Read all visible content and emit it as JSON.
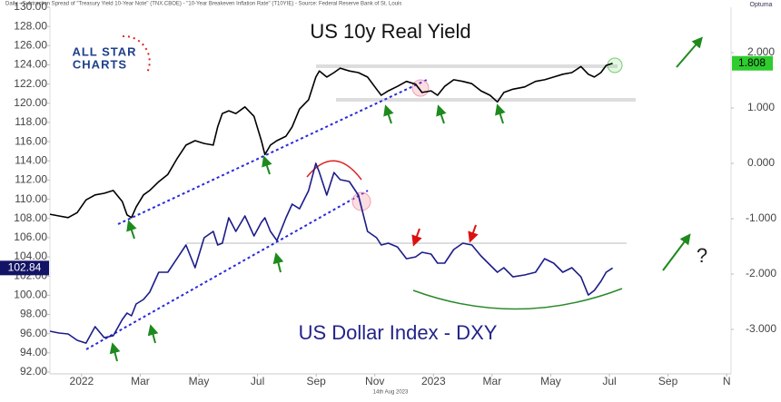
{
  "chart_data": {
    "type": "line",
    "subtitle": "Daily - Subtraction Spread of \"Treasury Yield 10-Year Note\" (TNX.CBOE) - \"10-Year Breakeven Inflation Rate\" (T10YIE) - Source: Federal Reserve Bank of St. Louis",
    "annotations": [
      "US 10y Real Yield",
      "US Dollar Index - DXY",
      "?"
    ],
    "logo": [
      "ALL STAR",
      "CHARTS"
    ],
    "brand": "Optuma",
    "footer": "14th Aug 2023",
    "x": [
      -1.08,
      -0.77,
      -0.46,
      -0.15,
      0.15,
      0.46,
      0.77,
      1.08,
      1.39,
      1.55,
      1.7,
      1.86,
      2.11,
      2.32,
      2.63,
      2.94,
      3.25,
      3.56,
      3.87,
      4.18,
      4.49,
      4.64,
      4.8,
      5.02,
      5.26,
      5.57,
      5.88,
      6.13,
      6.25,
      6.44,
      6.66,
      6.97,
      7.18,
      7.43,
      7.74,
      7.99,
      8.11,
      8.36,
      8.61,
      8.82,
      9.13,
      9.44,
      9.75,
      10.06,
      10.22,
      10.46,
      10.77,
      11.08,
      11.39,
      11.61,
      11.92,
      12.14,
      12.38,
      12.69,
      13.0,
      13.31,
      13.62,
      13.93,
      14.18,
      14.4,
      14.71,
      15.11,
      15.48,
      15.79,
      16.1,
      16.41,
      16.72,
      17.03,
      17.28,
      17.49,
      17.71,
      17.89,
      18.11
    ],
    "xlim": [
      -1.08,
      22.15
    ],
    "xticks": [
      {
        "value": 0,
        "label": "2022"
      },
      {
        "value": 2,
        "label": "Mar"
      },
      {
        "value": 4,
        "label": "May"
      },
      {
        "value": 6,
        "label": "Jul"
      },
      {
        "value": 8,
        "label": "Sep"
      },
      {
        "value": 10,
        "label": "Nov"
      },
      {
        "value": 12,
        "label": "2023"
      },
      {
        "value": 14,
        "label": "Mar"
      },
      {
        "value": 16,
        "label": "May"
      },
      {
        "value": 18,
        "label": "Jul"
      },
      {
        "value": 20,
        "label": "Sep"
      },
      {
        "value": 22,
        "label": "N"
      }
    ],
    "ylim": [
      92,
      130
    ],
    "yticks": [
      {
        "value": 92,
        "label": "92.00"
      },
      {
        "value": 94,
        "label": "94.00"
      },
      {
        "value": 96,
        "label": "96.00"
      },
      {
        "value": 98,
        "label": "98.00"
      },
      {
        "value": 100,
        "label": "100.00"
      },
      {
        "value": 102,
        "label": "102.00"
      },
      {
        "value": 104,
        "label": "104.00"
      },
      {
        "value": 106,
        "label": "106.00"
      },
      {
        "value": 108,
        "label": "108.00"
      },
      {
        "value": 110,
        "label": "110.00"
      },
      {
        "value": 112,
        "label": "112.00"
      },
      {
        "value": 114,
        "label": "114.00"
      },
      {
        "value": 116,
        "label": "116.00"
      },
      {
        "value": 118,
        "label": "118.00"
      },
      {
        "value": 120,
        "label": "120.00"
      },
      {
        "value": 122,
        "label": "122.00"
      },
      {
        "value": 124,
        "label": "124.00"
      },
      {
        "value": 126,
        "label": "126.00"
      },
      {
        "value": 128,
        "label": "128.00"
      },
      {
        "value": 130,
        "label": "130.00"
      }
    ],
    "y2lim": [
      -3.77,
      2.82
    ],
    "y2ticks": [
      {
        "value": 2,
        "label": "2.000"
      },
      {
        "value": 1,
        "label": "1.000"
      },
      {
        "value": 0,
        "label": "0.000"
      },
      {
        "value": -1,
        "label": "-1.000"
      },
      {
        "value": -2,
        "label": "-2.000"
      },
      {
        "value": -3,
        "label": "-3.000"
      }
    ],
    "series": [
      {
        "name": "US Dollar Index - DXY",
        "color": "#1c1c8a",
        "axis": "y",
        "values": [
          96.25,
          96.06,
          95.97,
          95.31,
          95.02,
          96.73,
          95.59,
          95.78,
          97.48,
          98.14,
          97.86,
          99.09,
          99.56,
          100.32,
          102.4,
          102.4,
          103.81,
          105.23,
          102.87,
          105.99,
          106.65,
          105.23,
          105.42,
          108.07,
          106.65,
          108.26,
          106.18,
          107.6,
          108.07,
          106.65,
          105.7,
          108.07,
          109.49,
          109.01,
          110.9,
          113.74,
          112.79,
          110.43,
          112.79,
          112.04,
          111.85,
          110.43,
          106.65,
          105.99,
          105.23,
          105.42,
          105.04,
          103.81,
          104.0,
          104.48,
          104.29,
          103.34,
          103.34,
          104.76,
          105.42,
          105.23,
          104.1,
          103.15,
          102.4,
          102.87,
          101.92,
          102.11,
          102.4,
          103.81,
          103.34,
          102.4,
          102.87,
          101.92,
          100.03,
          100.51,
          101.45,
          102.4,
          102.84
        ]
      },
      {
        "name": "US 10y Real Yield",
        "color": "#000000",
        "axis": "y2",
        "values": [
          -0.92,
          -0.95,
          -0.98,
          -0.89,
          -0.66,
          -0.57,
          -0.54,
          -0.49,
          -0.69,
          -0.93,
          -0.98,
          -0.79,
          -0.57,
          -0.49,
          -0.33,
          -0.2,
          0.08,
          0.33,
          0.41,
          0.36,
          0.33,
          0.66,
          0.9,
          0.95,
          0.9,
          1.02,
          0.85,
          0.41,
          0.16,
          0.33,
          0.41,
          0.49,
          0.66,
          0.98,
          1.15,
          1.56,
          1.67,
          1.56,
          1.64,
          1.72,
          1.67,
          1.64,
          1.56,
          1.34,
          1.23,
          1.31,
          1.39,
          1.48,
          1.43,
          1.28,
          1.31,
          1.23,
          1.39,
          1.51,
          1.48,
          1.44,
          1.31,
          1.23,
          1.11,
          1.28,
          1.34,
          1.38,
          1.48,
          1.51,
          1.56,
          1.61,
          1.64,
          1.75,
          1.61,
          1.56,
          1.64,
          1.77,
          1.808
        ]
      }
    ]
  }
}
